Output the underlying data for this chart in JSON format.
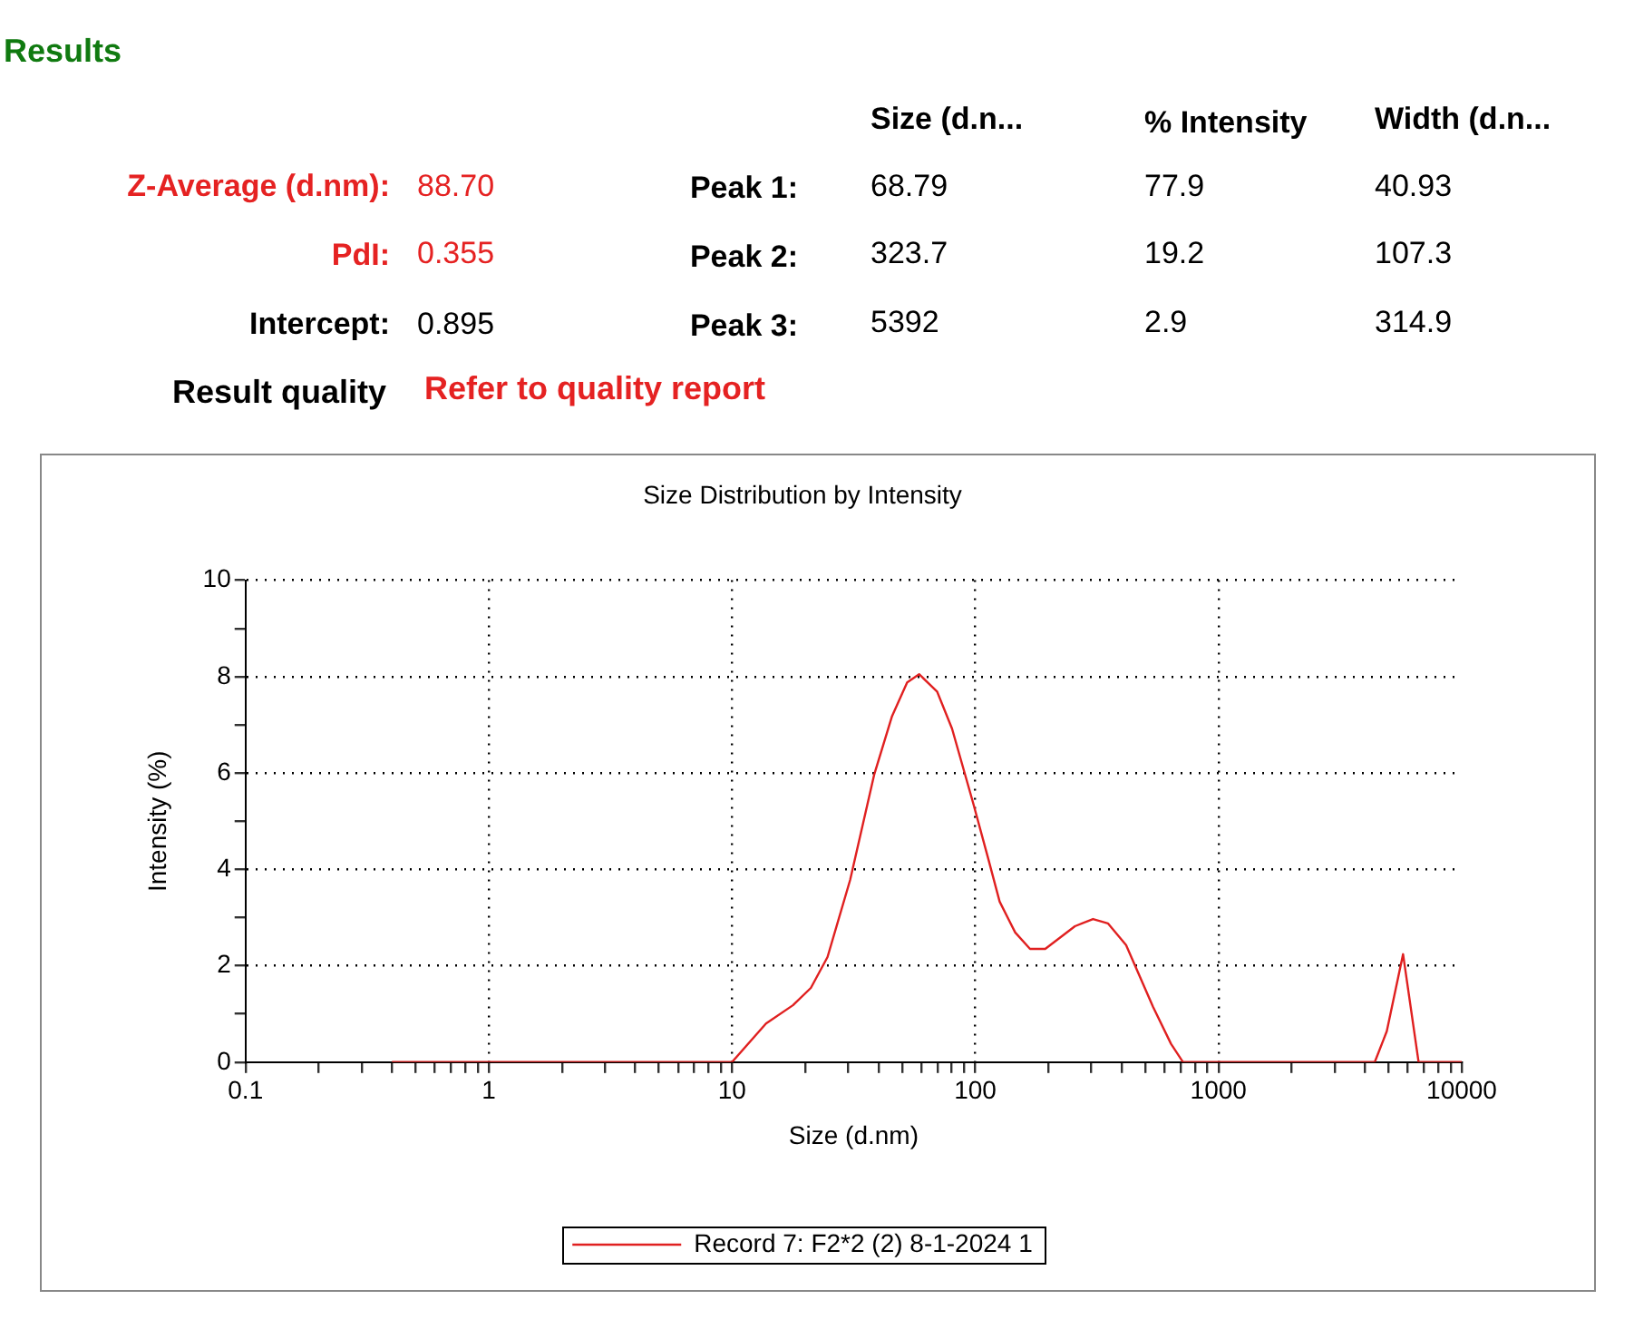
{
  "chart_data": {
    "type": "line",
    "title": "Size Distribution by Intensity",
    "xlabel": "Size (d.nm)",
    "ylabel": "Intensity (%)",
    "log": "x",
    "series": [
      {
        "name": "Record 7: F2*2 (2) 8-1-2024 1",
        "color": "#e02020",
        "x": [
          0.4,
          1,
          10,
          13.8,
          17.8,
          21.1,
          24.7,
          30.6,
          38.4,
          45.5,
          52.5,
          58.8,
          69.7,
          80.3,
          98,
          113,
          126,
          146,
          168,
          194,
          257,
          305,
          351,
          417,
          538,
          638,
          715,
          4390,
          4920,
          5740,
          6650,
          10000
        ],
        "values": [
          0,
          0,
          0,
          0.8,
          1.18,
          1.54,
          2.18,
          3.78,
          5.96,
          7.18,
          7.88,
          8.05,
          7.69,
          6.92,
          5.38,
          4.23,
          3.33,
          2.69,
          2.35,
          2.35,
          2.82,
          2.97,
          2.88,
          2.43,
          1.15,
          0.38,
          0,
          0,
          0.64,
          2.24,
          0,
          0
        ]
      }
    ],
    "xlim": [
      0.1,
      10000
    ],
    "xticks": [
      0.1,
      {
        "value": 0.2,
        "label": null
      },
      {
        "value": 0.3,
        "label": null
      },
      {
        "value": 0.4,
        "label": null
      },
      {
        "value": 0.5,
        "label": null
      },
      {
        "value": 0.6,
        "label": null
      },
      {
        "value": 0.7,
        "label": null
      },
      {
        "value": 0.8,
        "label": null
      },
      {
        "value": 0.9,
        "label": null
      },
      1,
      {
        "value": 2,
        "label": null
      },
      {
        "value": 3,
        "label": null
      },
      {
        "value": 4,
        "label": null
      },
      {
        "value": 5,
        "label": null
      },
      {
        "value": 6,
        "label": null
      },
      {
        "value": 7,
        "label": null
      },
      {
        "value": 8,
        "label": null
      },
      {
        "value": 9,
        "label": null
      },
      10,
      {
        "value": 20,
        "label": null
      },
      {
        "value": 30,
        "label": null
      },
      {
        "value": 40,
        "label": null
      },
      {
        "value": 50,
        "label": null
      },
      {
        "value": 60,
        "label": null
      },
      {
        "value": 70,
        "label": null
      },
      {
        "value": 80,
        "label": null
      },
      {
        "value": 90,
        "label": null
      },
      100,
      {
        "value": 200,
        "label": null
      },
      {
        "value": 300,
        "label": null
      },
      {
        "value": 400,
        "label": null
      },
      {
        "value": 500,
        "label": null
      },
      {
        "value": 600,
        "label": null
      },
      {
        "value": 700,
        "label": null
      },
      {
        "value": 800,
        "label": null
      },
      {
        "value": 900,
        "label": null
      },
      1000,
      {
        "value": 2000,
        "label": null
      },
      {
        "value": 3000,
        "label": null
      },
      {
        "value": 4000,
        "label": null
      },
      {
        "value": 5000,
        "label": null
      },
      {
        "value": 6000,
        "label": null
      },
      {
        "value": 7000,
        "label": null
      },
      {
        "value": 8000,
        "label": null
      },
      {
        "value": 9000,
        "label": null
      },
      10000
    ],
    "ylim": [
      0,
      10
    ],
    "yticks": [
      0,
      {
        "value": 1,
        "label": null
      },
      2,
      {
        "value": 3,
        "label": null
      },
      4,
      {
        "value": 5,
        "label": null
      },
      6,
      {
        "value": 7,
        "label": null
      },
      8,
      {
        "value": 9,
        "label": null
      },
      10
    ],
    "grid": true,
    "legend": "bottom",
    "marker": "none",
    "line_style": "solid",
    "annotations": [
      "Results",
      "Size (d.n...",
      "% Intensity",
      "Width (d.n...",
      "Z-Average (d.nm):",
      "88.70",
      "Peak 1:",
      "68.79",
      "77.9",
      "40.93",
      "PdI:",
      "0.355",
      "Peak 2:",
      "323.7",
      "19.2",
      "107.3",
      "Intercept:",
      "0.895",
      "Peak 3:",
      "5392",
      "2.9",
      "314.9",
      "Result quality",
      "Refer to quality report"
    ]
  }
}
